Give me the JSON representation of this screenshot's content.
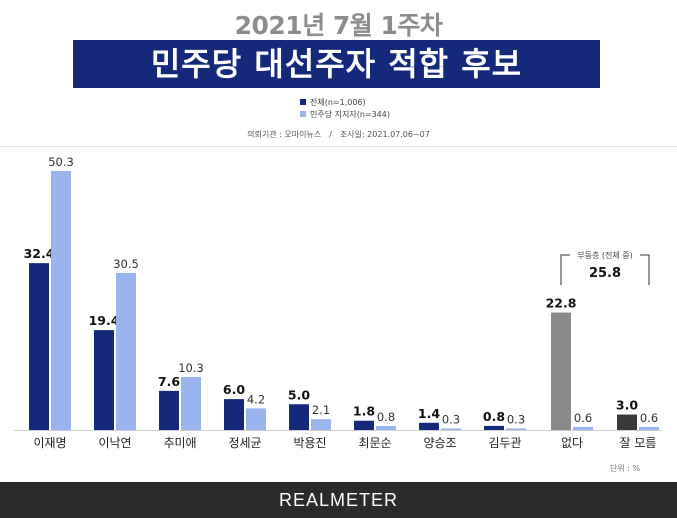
{
  "header": {
    "top_title": "2021년 7월 1주차",
    "banner_title": "민주당 대선주자 적합 후보"
  },
  "legend": {
    "items": [
      {
        "label": "전체(n=1,006)",
        "color": "#15297a"
      },
      {
        "label": "민주당 지지자(n=344)",
        "color": "#9ab5ee"
      }
    ]
  },
  "meta": {
    "agency": "의뢰기관 : 오마이뉴스",
    "date": "조사일: 2021.07.06~07"
  },
  "chart_data": {
    "type": "bar",
    "categories": [
      "이재명",
      "이낙연",
      "추미애",
      "정세균",
      "박용진",
      "최문순",
      "양승조",
      "김두관",
      "없다",
      "잘 모름"
    ],
    "series": [
      {
        "name": "전체(n=1,006)",
        "values": [
          32.4,
          19.4,
          7.6,
          6.0,
          5.0,
          1.8,
          1.4,
          0.8,
          22.8,
          3.0
        ]
      },
      {
        "name": "민주당 지지자(n=344)",
        "values": [
          50.3,
          30.5,
          10.3,
          4.2,
          2.1,
          0.8,
          0.3,
          0.3,
          0.6,
          0.6
        ]
      }
    ],
    "value_labels": [
      [
        "32.4",
        "19.4",
        "7.6",
        "6.0",
        "5.0",
        "1.8",
        "1.4",
        "0.8",
        "22.8",
        "3.0"
      ],
      [
        "50.3",
        "30.5",
        "10.3",
        "4.2",
        "2.1",
        "0.8",
        "0.3",
        "0.3",
        "0.6",
        "0.6"
      ]
    ],
    "colors": {
      "total": "#15297a",
      "supporters": "#9ab5ee",
      "none_total": "#8a8a8a",
      "dontknow_total": "#3a3a3a"
    },
    "annotation": {
      "label": "부동층 (전체 중)",
      "value": "25.8"
    },
    "unit_label": "단위 : %",
    "ylim": [
      0,
      55
    ],
    "grid": false
  },
  "footer": {
    "brand": "REALMETER"
  }
}
